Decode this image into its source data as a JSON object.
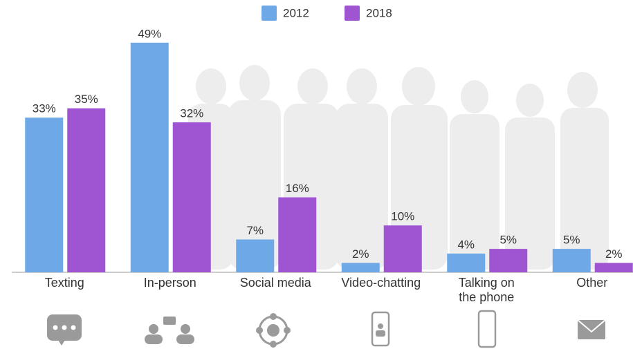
{
  "chart_data": {
    "type": "bar",
    "categories": [
      "Texting",
      "In-person",
      "Social media",
      "Video-chatting",
      "Talking on the phone",
      "Other"
    ],
    "series": [
      {
        "name": "2012",
        "color": "#6fa8e6",
        "values": [
          33,
          49,
          7,
          2,
          4,
          5
        ],
        "value_labels": [
          "33%",
          "49%",
          "7%",
          "2%",
          "4%",
          "5%"
        ]
      },
      {
        "name": "2018",
        "color": "#9f55d2",
        "values": [
          35,
          32,
          16,
          10,
          5,
          2
        ],
        "value_labels": [
          "35%",
          "32%",
          "16%",
          "10%",
          "5%",
          "2%"
        ]
      }
    ],
    "ylim": [
      0,
      50
    ],
    "grid": false,
    "legend": "top"
  }
}
